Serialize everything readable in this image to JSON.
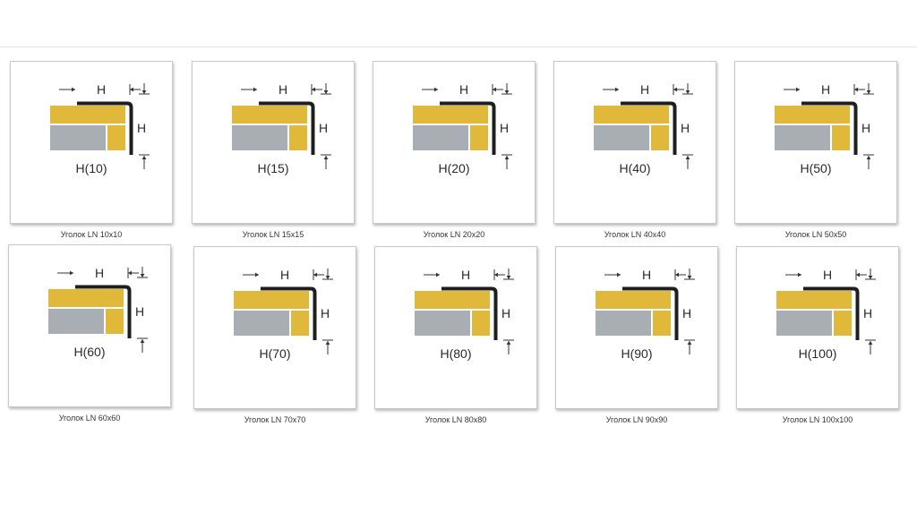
{
  "colors": {
    "gold": "#e0b83a",
    "gray": "#a9adb4",
    "profile": "#1e1e1e",
    "arrows": "#333333"
  },
  "icons": [
    "corner-profile-diagram-icon",
    "dimension-arrow-icon"
  ],
  "files": [
    {
      "caption": "Уголок LN 10x10",
      "size_label": "H(10)",
      "dim_top": "H",
      "dim_side": "H"
    },
    {
      "caption": "Уголок LN 15x15",
      "size_label": "H(15)",
      "dim_top": "H",
      "dim_side": "H"
    },
    {
      "caption": "Уголок LN 20x20",
      "size_label": "H(20)",
      "dim_top": "H",
      "dim_side": "H"
    },
    {
      "caption": "Уголок LN 40x40",
      "size_label": "H(40)",
      "dim_top": "H",
      "dim_side": "H"
    },
    {
      "caption": "Уголок LN 50x50",
      "size_label": "H(50)",
      "dim_top": "H",
      "dim_side": "H"
    },
    {
      "caption": "Уголок LN 60x60",
      "size_label": "H(60)",
      "dim_top": "H",
      "dim_side": "H"
    },
    {
      "caption": "Уголок LN 70x70",
      "size_label": "H(70)",
      "dim_top": "H",
      "dim_side": "H"
    },
    {
      "caption": "Уголок LN 80x80",
      "size_label": "H(80)",
      "dim_top": "H",
      "dim_side": "H"
    },
    {
      "caption": "Уголок LN 90x90",
      "size_label": "H(90)",
      "dim_top": "H",
      "dim_side": "H"
    },
    {
      "caption": "Уголок LN 100x100",
      "size_label": "H(100)",
      "dim_top": "H",
      "dim_side": "H"
    }
  ]
}
